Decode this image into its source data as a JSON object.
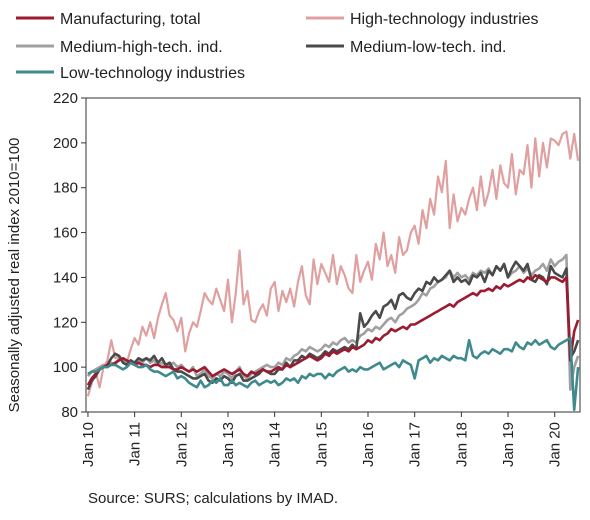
{
  "chart_data": {
    "type": "line",
    "title": "",
    "ylabel": "Seasonally adjusted real index 2010=100",
    "xlabel": "",
    "ylim": [
      80,
      220
    ],
    "yticks": [
      80,
      100,
      120,
      140,
      160,
      180,
      200,
      220
    ],
    "x_start": "Jan 10",
    "x_end": "May 20",
    "x_tick_labels": [
      "Jan 10",
      "Jan 11",
      "Jan 12",
      "Jan 13",
      "Jan 14",
      "Jan 15",
      "Jan 16",
      "Jan 17",
      "Jan 18",
      "Jan 19",
      "Jan 20"
    ],
    "grid": false,
    "legend_position": "top",
    "series": [
      {
        "name": "Manufacturing, total",
        "color": "#9b1b30",
        "values": [
          92,
          95,
          97,
          99,
          100,
          101,
          101,
          102,
          103,
          104,
          103,
          102,
          101,
          102,
          101,
          101,
          100,
          101,
          101,
          100,
          100,
          100,
          99,
          99,
          100,
          99,
          98,
          99,
          98,
          99,
          100,
          98,
          96,
          97,
          98,
          99,
          98,
          97,
          98,
          99,
          97,
          96,
          98,
          97,
          98,
          99,
          98,
          98,
          99,
          100,
          99,
          101,
          100,
          101,
          102,
          103,
          104,
          105,
          104,
          103,
          104,
          106,
          105,
          107,
          106,
          107,
          108,
          107,
          109,
          108,
          109,
          110,
          112,
          111,
          113,
          112,
          114,
          115,
          117,
          116,
          117,
          118,
          117,
          119,
          119,
          120,
          121,
          122,
          123,
          124,
          125,
          126,
          127,
          128,
          127,
          129,
          130,
          131,
          132,
          133,
          132,
          134,
          134,
          135,
          134,
          136,
          135,
          137,
          136,
          137,
          138,
          139,
          138,
          140,
          139,
          141,
          140,
          139,
          138,
          140,
          140,
          139,
          138,
          140,
          103,
          116,
          121
        ]
      },
      {
        "name": "High-technology industries",
        "color": "#e0a0a0",
        "values": [
          87,
          93,
          98,
          91,
          100,
          103,
          112,
          104,
          105,
          103,
          102,
          108,
          113,
          110,
          118,
          114,
          120,
          113,
          122,
          128,
          133,
          123,
          121,
          116,
          122,
          107,
          115,
          120,
          118,
          125,
          133,
          130,
          128,
          135,
          130,
          125,
          139,
          120,
          133,
          152,
          128,
          134,
          121,
          120,
          125,
          128,
          123,
          135,
          138,
          125,
          134,
          129,
          135,
          127,
          138,
          145,
          132,
          128,
          148,
          137,
          146,
          142,
          138,
          150,
          137,
          145,
          141,
          135,
          133,
          150,
          138,
          143,
          147,
          139,
          155,
          148,
          160,
          145,
          150,
          142,
          158,
          150,
          152,
          160,
          163,
          155,
          170,
          162,
          175,
          168,
          185,
          178,
          192,
          162,
          177,
          165,
          171,
          168,
          175,
          180,
          170,
          185,
          172,
          178,
          188,
          175,
          190,
          182,
          180,
          195,
          177,
          188,
          186,
          199,
          180,
          202,
          185,
          200,
          189,
          202,
          201,
          199,
          204,
          205,
          193,
          204,
          192
        ]
      },
      {
        "name": "Medium-high-tech. ind.",
        "color": "#a0a0a0",
        "values": [
          96,
          98,
          99,
          100,
          101,
          100,
          102,
          101,
          104,
          103,
          102,
          103,
          101,
          103,
          102,
          104,
          102,
          103,
          101,
          102,
          100,
          101,
          102,
          100,
          101,
          99,
          98,
          100,
          96,
          97,
          99,
          96,
          95,
          97,
          96,
          98,
          97,
          95,
          98,
          100,
          96,
          95,
          97,
          98,
          99,
          100,
          101,
          100,
          100,
          102,
          101,
          104,
          103,
          105,
          106,
          108,
          107,
          109,
          108,
          107,
          108,
          110,
          109,
          111,
          110,
          112,
          113,
          111,
          112,
          111,
          114,
          115,
          117,
          116,
          118,
          117,
          119,
          121,
          122,
          120,
          123,
          124,
          126,
          127,
          128,
          130,
          133,
          132,
          135,
          136,
          138,
          139,
          140,
          143,
          140,
          142,
          140,
          141,
          139,
          142,
          141,
          143,
          142,
          144,
          141,
          145,
          143,
          146,
          140,
          142,
          143,
          145,
          142,
          144,
          141,
          143,
          144,
          146,
          143,
          148,
          145,
          147,
          148,
          150,
          90,
          100,
          105
        ]
      },
      {
        "name": "Medium-low-tech. ind.",
        "color": "#4a4a4a",
        "values": [
          90,
          94,
          96,
          99,
          100,
          101,
          104,
          106,
          105,
          102,
          101,
          103,
          102,
          104,
          103,
          104,
          103,
          105,
          102,
          104,
          101,
          102,
          99,
          98,
          98,
          97,
          96,
          95,
          95,
          96,
          97,
          94,
          93,
          95,
          94,
          96,
          95,
          93,
          96,
          97,
          94,
          94,
          95,
          96,
          97,
          99,
          98,
          97,
          97,
          99,
          99,
          102,
          100,
          103,
          103,
          105,
          104,
          106,
          105,
          104,
          105,
          107,
          106,
          108,
          107,
          108,
          109,
          108,
          110,
          108,
          124,
          118,
          120,
          123,
          125,
          122,
          127,
          128,
          130,
          126,
          132,
          133,
          131,
          130,
          133,
          135,
          134,
          138,
          137,
          140,
          138,
          139,
          141,
          143,
          138,
          140,
          138,
          139,
          137,
          141,
          140,
          142,
          138,
          143,
          141,
          145,
          143,
          146,
          140,
          144,
          147,
          145,
          143,
          146,
          139,
          138,
          141,
          140,
          137,
          145,
          142,
          141,
          140,
          144,
          104,
          107,
          112
        ]
      },
      {
        "name": "Low-technology industries",
        "color": "#3f8a8d",
        "values": [
          97,
          98,
          98,
          99,
          100,
          100,
          101,
          101,
          100,
          99,
          100,
          102,
          101,
          100,
          100,
          101,
          99,
          98,
          98,
          97,
          96,
          97,
          98,
          95,
          96,
          95,
          93,
          92,
          91,
          94,
          91,
          92,
          94,
          93,
          95,
          92,
          92,
          94,
          92,
          93,
          92,
          91,
          93,
          94,
          92,
          93,
          94,
          93,
          94,
          92,
          93,
          95,
          94,
          95,
          93,
          96,
          95,
          97,
          96,
          97,
          97,
          95,
          97,
          96,
          98,
          99,
          100,
          98,
          99,
          98,
          100,
          99,
          99,
          100,
          101,
          102,
          99,
          100,
          101,
          102,
          100,
          103,
          102,
          101,
          95,
          103,
          104,
          105,
          102,
          104,
          103,
          105,
          104,
          103,
          105,
          104,
          104,
          103,
          112,
          105,
          104,
          106,
          107,
          106,
          108,
          107,
          106,
          108,
          108,
          107,
          111,
          109,
          108,
          111,
          110,
          112,
          110,
          111,
          112,
          109,
          108,
          110,
          111,
          112,
          113,
          81,
          100
        ]
      }
    ]
  },
  "legend": [
    {
      "label": "Manufacturing, total",
      "color": "#9b1b30"
    },
    {
      "label": "High-technology industries",
      "color": "#e0a0a0"
    },
    {
      "label": "Medium-high-tech. ind.",
      "color": "#a0a0a0"
    },
    {
      "label": "Medium-low-tech. ind.",
      "color": "#4a4a4a"
    },
    {
      "label": "Low-technology industries",
      "color": "#3f8a8d"
    }
  ],
  "source": "Source: SURS; calculations by IMAD."
}
